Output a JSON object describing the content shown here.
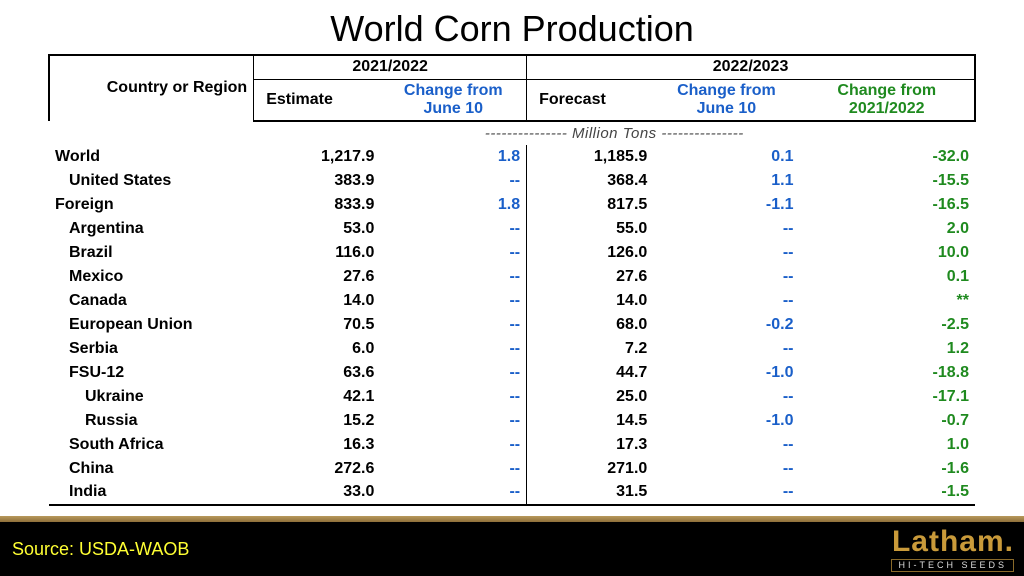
{
  "title": "World Corn Production",
  "headers": {
    "region": "Country or Region",
    "year1": "2021/2022",
    "year2": "2022/2023",
    "estimate": "Estimate",
    "forecast": "Forecast",
    "change_june": "Change from June 10",
    "change_yoy": "Change from 2021/2022"
  },
  "units_label": "--------------- Million Tons ---------------",
  "colors": {
    "black": "#000000",
    "blue": "#1a5fc9",
    "green": "#1f8a1f",
    "yellow": "#ffff33",
    "gold": "#c99a3a",
    "bg": "#ffffff",
    "footer_bg": "#000000"
  },
  "typography": {
    "title_fontsize": 36,
    "body_fontsize": 16,
    "footer_src_fontsize": 18,
    "brand_fontsize": 30
  },
  "columns": [
    "region",
    "estimate",
    "change1",
    "forecast",
    "change2",
    "change_yoy"
  ],
  "rows": [
    {
      "region": "World",
      "indent": 0,
      "estimate": "1,217.9",
      "change1": "1.8",
      "forecast": "1,185.9",
      "change2": "0.1",
      "change_yoy": "-32.0"
    },
    {
      "region": "United States",
      "indent": 1,
      "estimate": "383.9",
      "change1": "--",
      "forecast": "368.4",
      "change2": "1.1",
      "change_yoy": "-15.5"
    },
    {
      "region": "Foreign",
      "indent": 0,
      "estimate": "833.9",
      "change1": "1.8",
      "forecast": "817.5",
      "change2": "-1.1",
      "change_yoy": "-16.5"
    },
    {
      "region": "Argentina",
      "indent": 1,
      "estimate": "53.0",
      "change1": "--",
      "forecast": "55.0",
      "change2": "--",
      "change_yoy": "2.0"
    },
    {
      "region": "Brazil",
      "indent": 1,
      "estimate": "116.0",
      "change1": "--",
      "forecast": "126.0",
      "change2": "--",
      "change_yoy": "10.0"
    },
    {
      "region": "Mexico",
      "indent": 1,
      "estimate": "27.6",
      "change1": "--",
      "forecast": "27.6",
      "change2": "--",
      "change_yoy": "0.1"
    },
    {
      "region": "Canada",
      "indent": 1,
      "estimate": "14.0",
      "change1": "--",
      "forecast": "14.0",
      "change2": "--",
      "change_yoy": "**"
    },
    {
      "region": "European Union",
      "indent": 1,
      "estimate": "70.5",
      "change1": "--",
      "forecast": "68.0",
      "change2": "-0.2",
      "change_yoy": "-2.5"
    },
    {
      "region": "Serbia",
      "indent": 1,
      "estimate": "6.0",
      "change1": "--",
      "forecast": "7.2",
      "change2": "--",
      "change_yoy": "1.2"
    },
    {
      "region": "FSU-12",
      "indent": 1,
      "estimate": "63.6",
      "change1": "--",
      "forecast": "44.7",
      "change2": "-1.0",
      "change_yoy": "-18.8"
    },
    {
      "region": "Ukraine",
      "indent": 2,
      "estimate": "42.1",
      "change1": "--",
      "forecast": "25.0",
      "change2": "--",
      "change_yoy": "-17.1"
    },
    {
      "region": "Russia",
      "indent": 2,
      "estimate": "15.2",
      "change1": "--",
      "forecast": "14.5",
      "change2": "-1.0",
      "change_yoy": "-0.7"
    },
    {
      "region": "South Africa",
      "indent": 1,
      "estimate": "16.3",
      "change1": "--",
      "forecast": "17.3",
      "change2": "--",
      "change_yoy": "1.0"
    },
    {
      "region": "China",
      "indent": 1,
      "estimate": "272.6",
      "change1": "--",
      "forecast": "271.0",
      "change2": "--",
      "change_yoy": "-1.6"
    },
    {
      "region": "India",
      "indent": 1,
      "estimate": "33.0",
      "change1": "--",
      "forecast": "31.5",
      "change2": "--",
      "change_yoy": "-1.5"
    }
  ],
  "footer": {
    "source": "Source: USDA-WAOB",
    "brand_name": "Latham",
    "brand_sub": "HI-TECH SEEDS"
  }
}
